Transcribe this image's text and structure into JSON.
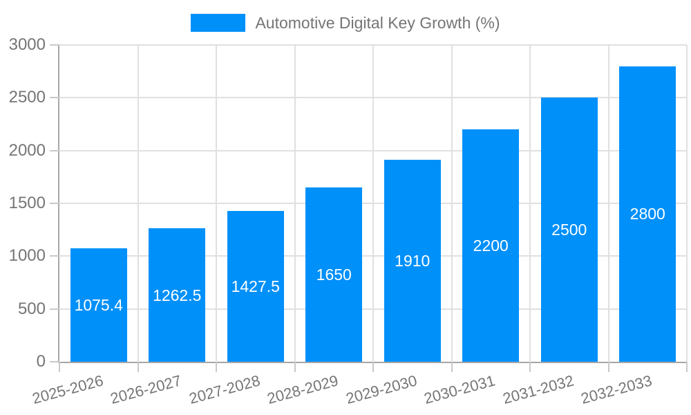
{
  "legend": {
    "label": "Automotive Digital Key Growth (%)"
  },
  "colors": {
    "bar": "#0090fa",
    "grid": "#e0e0e0",
    "axis": "#a6a6a6",
    "tick": "#c9c9c9",
    "text": "#757575",
    "bar_label_text": "#ffffff",
    "background": "#ffffff"
  },
  "chart_data": {
    "type": "bar",
    "title": "Automotive Digital Key Growth (%)",
    "categories": [
      "2025-2026",
      "2026-2027",
      "2027-2028",
      "2028-2029",
      "2029-2030",
      "2030-2031",
      "2031-2032",
      "2032-2033"
    ],
    "values": [
      1075.4,
      1262.5,
      1427.5,
      1650,
      1910,
      2200,
      2500,
      2800
    ],
    "value_labels": [
      "1075.4",
      "1262.5",
      "1427.5",
      "1650",
      "1910",
      "2200",
      "2500",
      "2800"
    ],
    "xlabel": "",
    "ylabel": "",
    "ylim": [
      0,
      3000
    ],
    "yticks": [
      0,
      500,
      1000,
      1500,
      2000,
      2500,
      3000
    ],
    "grid": true,
    "legend_position": "top",
    "bar_label_position": "center",
    "x_tick_rotation_deg": -15
  }
}
